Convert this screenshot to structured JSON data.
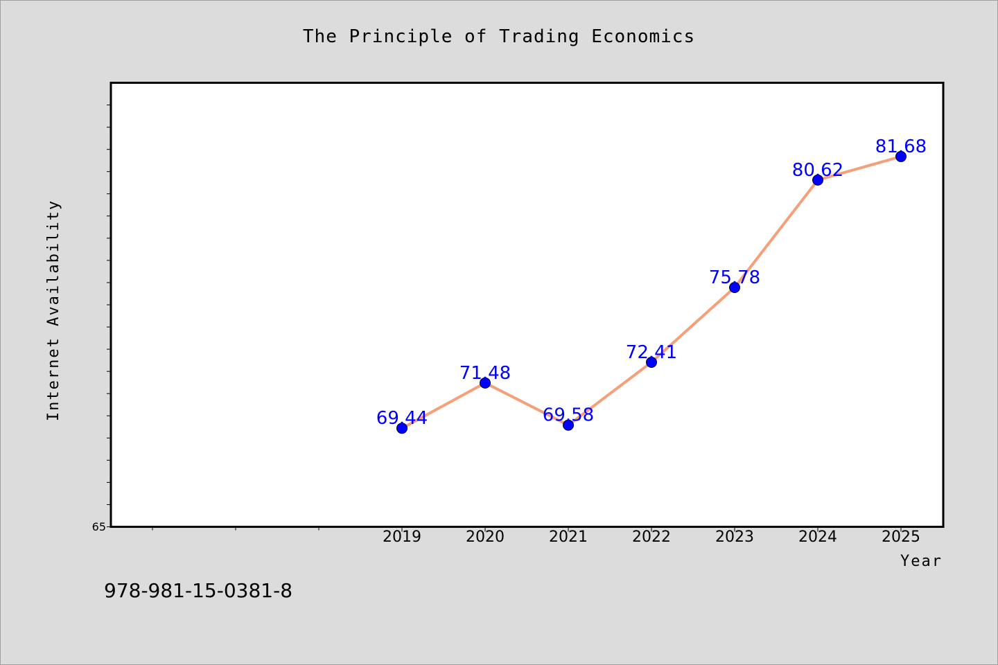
{
  "chart_data": {
    "type": "line",
    "title": "The Principle of Trading Economics",
    "xlabel": "Year",
    "ylabel": "Internet Availability",
    "categories": [
      "2019",
      "2020",
      "2021",
      "2022",
      "2023",
      "2024",
      "2025"
    ],
    "series": [
      {
        "values": [
          69.44,
          71.48,
          69.58,
          72.41,
          75.78,
          80.62,
          81.68
        ],
        "data_labels": [
          "69.44",
          "71.48",
          "69.58",
          "72.41",
          "75.78",
          "80.62",
          "81.68"
        ],
        "line_color": "#f4a07a",
        "marker_color": "#0000ff"
      }
    ],
    "ylim": [
      65,
      85
    ],
    "y_tick_labels": [
      "65"
    ],
    "grid": false,
    "legend": "none"
  },
  "footer": {
    "isbn": "978-981-15-0381-8"
  },
  "colors": {
    "background": "#dcdcdc",
    "plot_background": "#ffffff",
    "label_color": "#0000ff"
  }
}
